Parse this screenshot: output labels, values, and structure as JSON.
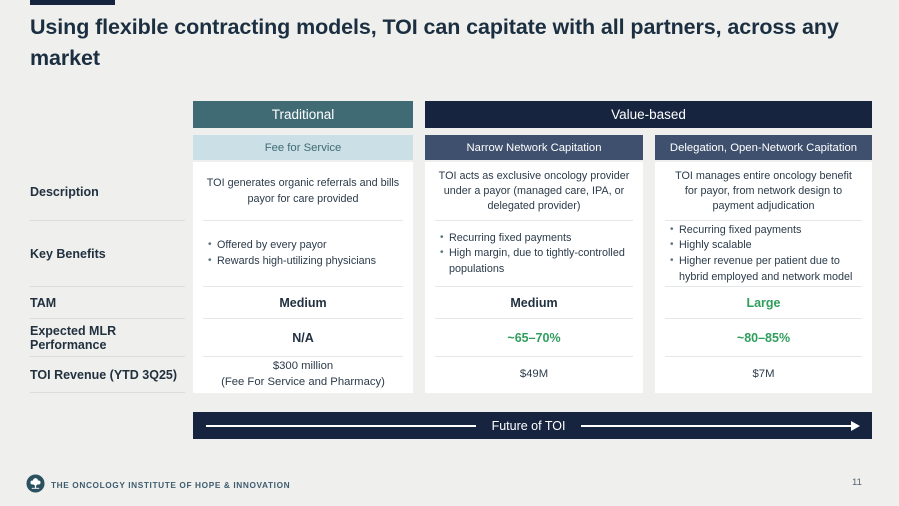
{
  "slide": {
    "title": "Using flexible contracting models, TOI can capitate with all partners, across any market",
    "future_banner": "Future of TOI",
    "footer_brand": "THE ONCOLOGY INSTITUTE OF HOPE & INNOVATION",
    "page_number": "11"
  },
  "table": {
    "group_headers": [
      {
        "label": "Traditional"
      },
      {
        "label": "Value-based"
      }
    ],
    "column_headers": [
      "Fee for Service",
      "Narrow Network Capitation",
      "Delegation, Open-Network Capitation"
    ],
    "row_labels": [
      "Description",
      "Key Benefits",
      "TAM",
      "Expected MLR Performance",
      "TOI Revenue (YTD 3Q25)"
    ],
    "columns": [
      {
        "description": "TOI generates organic referrals and bills payor for care provided",
        "key_benefits": [
          "Offered by every payor",
          "Rewards high-utilizing physicians"
        ],
        "tam": "Medium",
        "mlr": "N/A",
        "revenue": "$300 million",
        "revenue_note": "(Fee For Service and Pharmacy)"
      },
      {
        "description": "TOI acts as exclusive oncology provider under a payor (managed care, IPA, or delegated provider)",
        "key_benefits": [
          "Recurring fixed payments",
          "High margin, due to tightly-controlled populations"
        ],
        "tam": "Medium",
        "mlr": "~65–70%",
        "revenue": "$49M"
      },
      {
        "description": "TOI manages entire oncology benefit for payor, from network design to payment adjudication",
        "key_benefits": [
          "Recurring fixed payments",
          "Highly scalable",
          "Higher revenue per patient due to hybrid employed and network model"
        ],
        "tam": "Large",
        "mlr": "~80–85%",
        "revenue": "$7M"
      }
    ]
  },
  "colors": {
    "navy": "#16243f",
    "teal": "#406b75",
    "slate": "#3e506e",
    "lightblue": "#cbdfe6",
    "green": "#2f9e5d",
    "ink": "#22313f",
    "bg": "#eff0ee"
  }
}
